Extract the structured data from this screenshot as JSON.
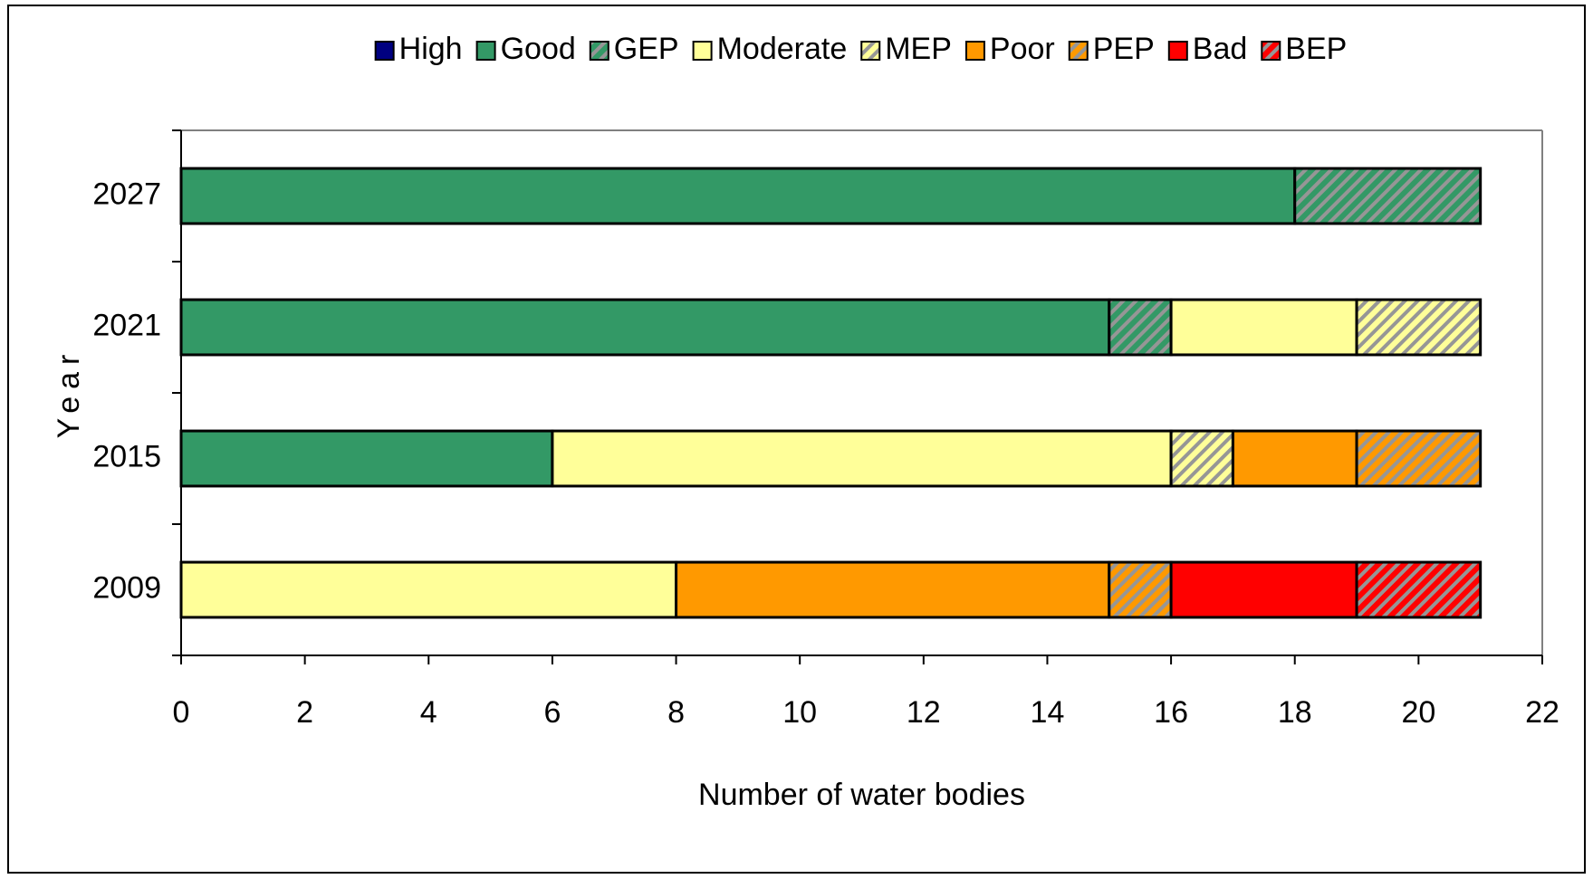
{
  "chart_data": {
    "type": "stacked-barh",
    "xlabel": "Number of water bodies",
    "ylabel": "Year",
    "categories": [
      "2009",
      "2015",
      "2021",
      "2027"
    ],
    "series": [
      {
        "name": "High",
        "color": "#000080",
        "hatch": false,
        "values": [
          0,
          0,
          0,
          0
        ]
      },
      {
        "name": "Good",
        "color": "#339966",
        "hatch": false,
        "values": [
          0,
          6,
          15,
          18
        ]
      },
      {
        "name": "GEP",
        "color": "#339966",
        "hatch": true,
        "values": [
          0,
          0,
          1,
          3
        ]
      },
      {
        "name": "Moderate",
        "color": "#ffff99",
        "hatch": false,
        "values": [
          8,
          10,
          3,
          0
        ]
      },
      {
        "name": "MEP",
        "color": "#ffff99",
        "hatch": true,
        "values": [
          0,
          1,
          2,
          0
        ]
      },
      {
        "name": "Poor",
        "color": "#ff9900",
        "hatch": false,
        "values": [
          7,
          2,
          0,
          0
        ]
      },
      {
        "name": "PEP",
        "color": "#ff9900",
        "hatch": true,
        "values": [
          1,
          2,
          0,
          0
        ]
      },
      {
        "name": "Bad",
        "color": "#ff0000",
        "hatch": false,
        "values": [
          3,
          0,
          0,
          0
        ]
      },
      {
        "name": "BEP",
        "color": "#ff0000",
        "hatch": true,
        "values": [
          2,
          0,
          0,
          0
        ]
      }
    ],
    "xlim": [
      0,
      22
    ],
    "xticks": [
      0,
      2,
      4,
      6,
      8,
      10,
      12,
      14,
      16,
      18,
      20,
      22
    ],
    "legend": "top"
  }
}
